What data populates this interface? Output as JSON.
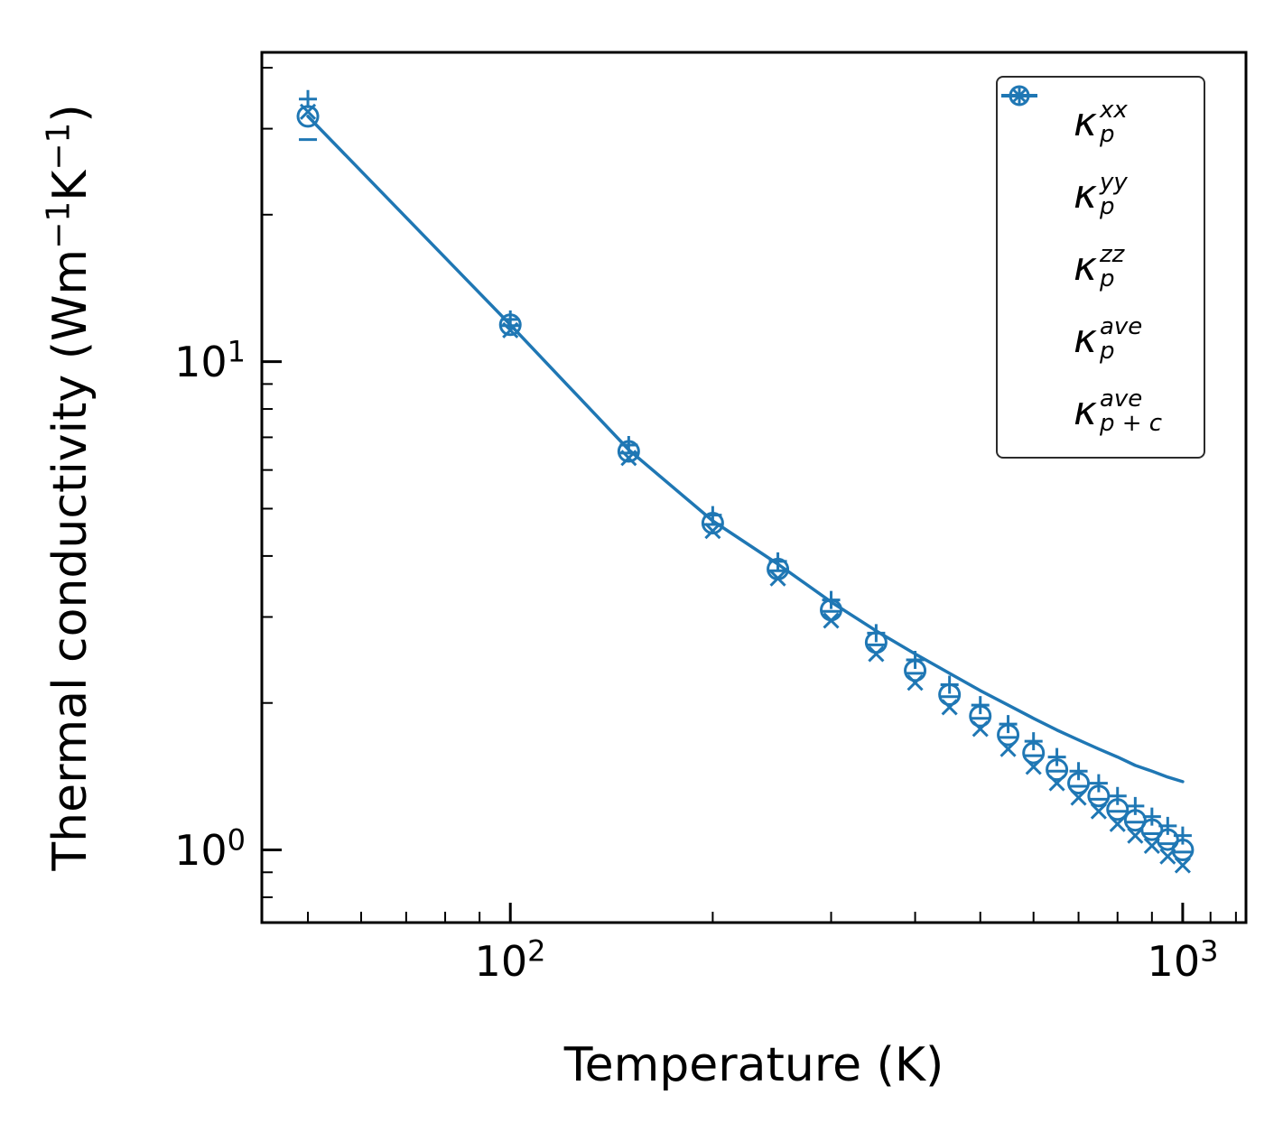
{
  "chart_data": {
    "type": "scatter+line",
    "title": "",
    "xlabel": "Temperature (K)",
    "ylabel_parts": {
      "p1": "Thermal conductivity (Wm",
      "e1": "−1",
      "p2": "K",
      "e2": "−1",
      "p3": ")"
    },
    "x_scale": "log",
    "y_scale": "log",
    "xlim": [
      42.7,
      1242
    ],
    "ylim": [
      0.71,
      43
    ],
    "grid": false,
    "color": "#1f77b4",
    "x": [
      50,
      100,
      150,
      200,
      250,
      300,
      350,
      400,
      450,
      500,
      550,
      600,
      650,
      700,
      750,
      800,
      850,
      900,
      950,
      1000
    ],
    "series": [
      {
        "name": "kappa_p_xx",
        "marker": "plus",
        "values": [
          34.5,
          12.2,
          6.75,
          4.85,
          3.9,
          3.25,
          2.78,
          2.45,
          2.18,
          1.98,
          1.81,
          1.67,
          1.55,
          1.45,
          1.37,
          1.29,
          1.23,
          1.17,
          1.12,
          1.07
        ]
      },
      {
        "name": "kappa_p_yy",
        "marker": "x",
        "values": [
          32.5,
          11.6,
          6.35,
          4.5,
          3.6,
          2.95,
          2.52,
          2.2,
          1.96,
          1.77,
          1.61,
          1.48,
          1.37,
          1.28,
          1.2,
          1.13,
          1.07,
          1.02,
          0.97,
          0.93
        ]
      },
      {
        "name": "kappa_p_zz",
        "marker": "minus",
        "values": [
          28.5,
          11.85,
          6.5,
          4.64,
          3.73,
          3.08,
          2.63,
          2.3,
          2.06,
          1.86,
          1.7,
          1.56,
          1.45,
          1.35,
          1.27,
          1.2,
          1.14,
          1.08,
          1.03,
          0.99
        ]
      },
      {
        "name": "kappa_p_ave",
        "marker": "circle",
        "values": [
          31.8,
          11.9,
          6.55,
          4.67,
          3.76,
          3.1,
          2.66,
          2.33,
          2.08,
          1.88,
          1.72,
          1.58,
          1.46,
          1.37,
          1.29,
          1.21,
          1.15,
          1.1,
          1.05,
          1.0
        ]
      },
      {
        "name": "kappa_p_plus_c_ave",
        "marker": "line",
        "values": [
          31.8,
          11.9,
          6.6,
          4.72,
          3.85,
          3.22,
          2.81,
          2.52,
          2.3,
          2.12,
          1.98,
          1.86,
          1.76,
          1.68,
          1.61,
          1.55,
          1.49,
          1.45,
          1.41,
          1.38
        ]
      }
    ],
    "x_major_ticks": [
      100,
      1000
    ],
    "x_minor_ticks": [
      50,
      60,
      70,
      80,
      90,
      200,
      300,
      400,
      500,
      600,
      700,
      800,
      900,
      1100,
      1200
    ],
    "y_major_ticks": [
      1,
      10
    ],
    "y_minor_ticks": [
      0.8,
      0.9,
      2,
      3,
      4,
      5,
      6,
      7,
      8,
      9,
      20,
      30,
      40
    ],
    "x_ticks": [
      {
        "base": "10",
        "exp": "2"
      },
      {
        "base": "10",
        "exp": "3"
      }
    ],
    "y_ticks": [
      {
        "base": "10",
        "exp": "1"
      },
      {
        "base": "10",
        "exp": "0"
      }
    ],
    "legend": {
      "entries": [
        {
          "kappa": "κ",
          "sup": "xx",
          "sub": "p",
          "marker": "plus"
        },
        {
          "kappa": "κ",
          "sup": "yy",
          "sub": "p",
          "marker": "x"
        },
        {
          "kappa": "κ",
          "sup": "zz",
          "sub": "p",
          "marker": "minus"
        },
        {
          "kappa": "κ",
          "sup": "ave",
          "sub": "p",
          "marker": "circle"
        },
        {
          "kappa": "κ",
          "sup": "ave",
          "sub": "p + c",
          "marker": "line"
        }
      ]
    }
  }
}
